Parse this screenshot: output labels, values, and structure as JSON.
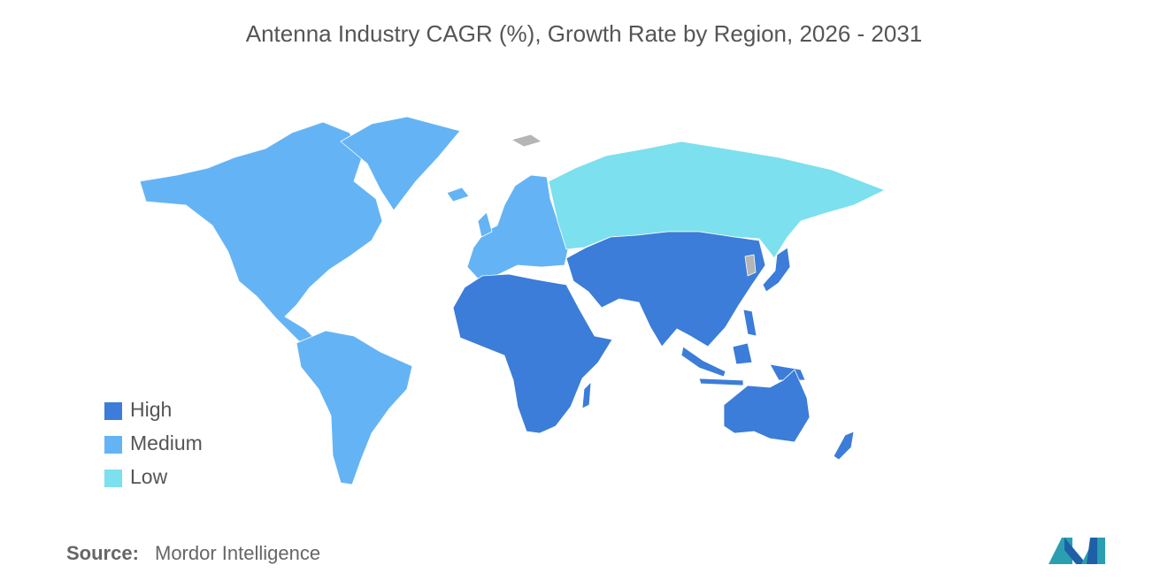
{
  "title": "Antenna Industry CAGR (%), Growth Rate by Region, 2026 - 2031",
  "legend": [
    {
      "label": "High",
      "color": "#3b7dd8"
    },
    {
      "label": "Medium",
      "color": "#64b4f5"
    },
    {
      "label": "Low",
      "color": "#7ce0ee"
    }
  ],
  "source": {
    "label": "Source:",
    "text": "Mordor Intelligence"
  }
}
